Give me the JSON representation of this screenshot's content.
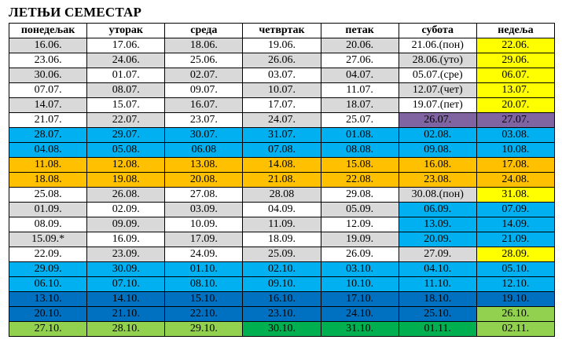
{
  "title": "ЛЕТЊИ СЕМЕСТАР",
  "headers": [
    "понедељак",
    "уторак",
    "среда",
    "четвртак",
    "петак",
    "субота",
    "недеља"
  ],
  "colors": {
    "gray": "#d9d9d9",
    "white": "#ffffff",
    "yellow": "#ffff00",
    "purple": "#8064a2",
    "cyan": "#00b0f0",
    "orange": "#ffc000",
    "blue": "#0070c0",
    "lgreen": "#92d050",
    "green": "#00b050"
  },
  "rows": [
    [
      [
        "16.06.",
        "gray"
      ],
      [
        "17.06.",
        "white"
      ],
      [
        "18.06.",
        "gray"
      ],
      [
        "19.06.",
        "white"
      ],
      [
        "20.06.",
        "gray"
      ],
      [
        "21.06.(пон)",
        "white"
      ],
      [
        "22.06.",
        "yellow"
      ]
    ],
    [
      [
        "23.06.",
        "white"
      ],
      [
        "24.06.",
        "gray"
      ],
      [
        "25.06.",
        "white"
      ],
      [
        "26.06.",
        "gray"
      ],
      [
        "27.06.",
        "white"
      ],
      [
        "28.06.(уто)",
        "gray"
      ],
      [
        "29.06.",
        "yellow"
      ]
    ],
    [
      [
        "30.06.",
        "gray"
      ],
      [
        "01.07.",
        "white"
      ],
      [
        "02.07.",
        "gray"
      ],
      [
        "03.07.",
        "white"
      ],
      [
        "04.07.",
        "gray"
      ],
      [
        "05.07.(сре)",
        "white"
      ],
      [
        "06.07.",
        "yellow"
      ]
    ],
    [
      [
        "07.07.",
        "white"
      ],
      [
        "08.07.",
        "gray"
      ],
      [
        "09.07.",
        "white"
      ],
      [
        "10.07.",
        "gray"
      ],
      [
        "11.07.",
        "white"
      ],
      [
        "12.07.(чет)",
        "gray"
      ],
      [
        "13.07.",
        "yellow"
      ]
    ],
    [
      [
        "14.07.",
        "gray"
      ],
      [
        "15.07.",
        "white"
      ],
      [
        "16.07.",
        "gray"
      ],
      [
        "17.07.",
        "white"
      ],
      [
        "18.07.",
        "gray"
      ],
      [
        "19.07.(пет)",
        "white"
      ],
      [
        "20.07.",
        "yellow"
      ]
    ],
    [
      [
        "21.07.",
        "white"
      ],
      [
        "22.07.",
        "gray"
      ],
      [
        "23.07.",
        "white"
      ],
      [
        "24.07.",
        "gray"
      ],
      [
        "25.07.",
        "white"
      ],
      [
        "26.07.",
        "purple"
      ],
      [
        "27.07.",
        "purple"
      ]
    ],
    [
      [
        "28.07.",
        "cyan"
      ],
      [
        "29.07.",
        "cyan"
      ],
      [
        "30.07.",
        "cyan"
      ],
      [
        "31.07.",
        "cyan"
      ],
      [
        "01.08.",
        "cyan"
      ],
      [
        "02.08.",
        "cyan"
      ],
      [
        "03.08.",
        "cyan"
      ]
    ],
    [
      [
        "04.08.",
        "cyan"
      ],
      [
        "05.08.",
        "cyan"
      ],
      [
        "06.08",
        "cyan"
      ],
      [
        "07.08.",
        "cyan"
      ],
      [
        "08.08.",
        "cyan"
      ],
      [
        "09.08.",
        "cyan"
      ],
      [
        "10.08.",
        "cyan"
      ]
    ],
    [
      [
        "11.08.",
        "orange"
      ],
      [
        "12.08.",
        "orange"
      ],
      [
        "13.08.",
        "orange"
      ],
      [
        "14.08.",
        "orange"
      ],
      [
        "15.08.",
        "orange"
      ],
      [
        "16.08.",
        "orange"
      ],
      [
        "17.08.",
        "orange"
      ]
    ],
    [
      [
        "18.08.",
        "orange"
      ],
      [
        "19.08.",
        "orange"
      ],
      [
        "20.08.",
        "orange"
      ],
      [
        "21.08.",
        "orange"
      ],
      [
        "22.08.",
        "orange"
      ],
      [
        "23.08.",
        "orange"
      ],
      [
        "24.08.",
        "orange"
      ]
    ],
    [
      [
        "25.08.",
        "white"
      ],
      [
        "26.08.",
        "gray"
      ],
      [
        "27.08.",
        "white"
      ],
      [
        "28.08",
        "gray"
      ],
      [
        "29.08.",
        "white"
      ],
      [
        "30.08.(пон)",
        "gray"
      ],
      [
        "31.08.",
        "yellow"
      ]
    ],
    [
      [
        "01.09.",
        "gray"
      ],
      [
        "02.09.",
        "white"
      ],
      [
        "03.09.",
        "gray"
      ],
      [
        "04.09.",
        "white"
      ],
      [
        "05.09.",
        "gray"
      ],
      [
        "06.09.",
        "cyan"
      ],
      [
        "07.09.",
        "cyan"
      ]
    ],
    [
      [
        "08.09.",
        "white"
      ],
      [
        "09.09.",
        "gray"
      ],
      [
        "10.09.",
        "white"
      ],
      [
        "11.09.",
        "gray"
      ],
      [
        "12.09.",
        "white"
      ],
      [
        "13.09.",
        "cyan"
      ],
      [
        "14.09.",
        "cyan"
      ]
    ],
    [
      [
        "15.09.*",
        "gray"
      ],
      [
        "16.09.",
        "white"
      ],
      [
        "17.09.",
        "gray"
      ],
      [
        "18.09.",
        "white"
      ],
      [
        "19.09.",
        "gray"
      ],
      [
        "20.09.",
        "cyan"
      ],
      [
        "21.09.",
        "cyan"
      ]
    ],
    [
      [
        "22.09.",
        "white"
      ],
      [
        "23.09.",
        "gray"
      ],
      [
        "24.09.",
        "white"
      ],
      [
        "25.09.",
        "gray"
      ],
      [
        "26.09.",
        "white"
      ],
      [
        "27.09.",
        "gray"
      ],
      [
        "28.09.",
        "yellow"
      ]
    ],
    [
      [
        "29.09.",
        "cyan"
      ],
      [
        "30.09.",
        "cyan"
      ],
      [
        "01.10.",
        "cyan"
      ],
      [
        "02.10.",
        "cyan"
      ],
      [
        "03.10.",
        "cyan"
      ],
      [
        "04.10.",
        "cyan"
      ],
      [
        "05.10.",
        "cyan"
      ]
    ],
    [
      [
        "06.10.",
        "cyan"
      ],
      [
        "07.10.",
        "cyan"
      ],
      [
        "08.10.",
        "cyan"
      ],
      [
        "09.10.",
        "cyan"
      ],
      [
        "10.10.",
        "cyan"
      ],
      [
        "11.10.",
        "cyan"
      ],
      [
        "12.10.",
        "cyan"
      ]
    ],
    [
      [
        "13.10.",
        "blue"
      ],
      [
        "14.10.",
        "blue"
      ],
      [
        "15.10.",
        "blue"
      ],
      [
        "16.10.",
        "blue"
      ],
      [
        "17.10.",
        "blue"
      ],
      [
        "18.10.",
        "blue"
      ],
      [
        "19.10.",
        "blue"
      ]
    ],
    [
      [
        "20.10.",
        "blue"
      ],
      [
        "21.10.",
        "blue"
      ],
      [
        "22.10.",
        "blue"
      ],
      [
        "23.10.",
        "blue"
      ],
      [
        "24.10.",
        "blue"
      ],
      [
        "25.10.",
        "blue"
      ],
      [
        "26.10.",
        "lgreen"
      ]
    ],
    [
      [
        "27.10.",
        "lgreen"
      ],
      [
        "28.10.",
        "lgreen"
      ],
      [
        "29.10.",
        "lgreen"
      ],
      [
        "30.10.",
        "green"
      ],
      [
        "31.10.",
        "green"
      ],
      [
        "01.11.",
        "green"
      ],
      [
        "02.11.",
        "lgreen"
      ]
    ]
  ]
}
